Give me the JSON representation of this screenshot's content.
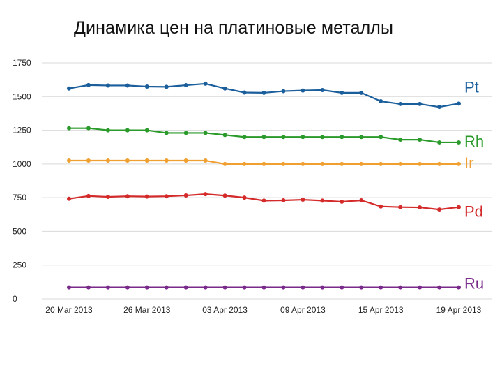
{
  "title": "Динамика цен на платиновые металлы",
  "chart_data": {
    "type": "line",
    "title": "Динамика цен на платиновые металлы",
    "xlabel": "",
    "ylabel": "",
    "ylim": [
      0,
      1750
    ],
    "yticks": [
      0,
      250,
      500,
      750,
      1000,
      1250,
      1500,
      1750
    ],
    "grid": true,
    "legend": "labels at right end of each line",
    "x_tick_labels": [
      "20 Mar 2013",
      "26 Mar 2013",
      "03 Apr 2013",
      "09 Apr 2013",
      "15 Apr 2013",
      "19 Apr 2013"
    ],
    "x_tick_positions": [
      0,
      4,
      8,
      12,
      16,
      20
    ],
    "series": [
      {
        "name": "Pt",
        "color": "#1a5e9c",
        "values": [
          1560,
          1585,
          1582,
          1582,
          1574,
          1572,
          1584,
          1595,
          1560,
          1530,
          1528,
          1540,
          1545,
          1548,
          1528,
          1528,
          1465,
          1445,
          1445,
          1423,
          1448
        ]
      },
      {
        "name": "Rh",
        "color": "#2a9a2a",
        "values": [
          1265,
          1265,
          1250,
          1250,
          1250,
          1230,
          1230,
          1230,
          1215,
          1200,
          1200,
          1200,
          1200,
          1200,
          1200,
          1200,
          1200,
          1180,
          1180,
          1160,
          1160
        ]
      },
      {
        "name": "Ir",
        "color": "#f0a030",
        "values": [
          1025,
          1025,
          1025,
          1025,
          1025,
          1025,
          1025,
          1025,
          1000,
          1000,
          1000,
          1000,
          1000,
          1000,
          1000,
          1000,
          1000,
          1000,
          1000,
          1000,
          1000
        ]
      },
      {
        "name": "Pd",
        "color": "#d42a2a",
        "values": [
          742,
          762,
          756,
          760,
          758,
          760,
          766,
          776,
          765,
          750,
          728,
          730,
          735,
          728,
          720,
          730,
          685,
          680,
          678,
          662,
          680
        ]
      },
      {
        "name": "Ru",
        "color": "#7a2a8a",
        "values": [
          85,
          85,
          85,
          85,
          85,
          85,
          85,
          85,
          85,
          85,
          85,
          85,
          85,
          85,
          85,
          85,
          85,
          85,
          85,
          85,
          85
        ]
      }
    ]
  }
}
